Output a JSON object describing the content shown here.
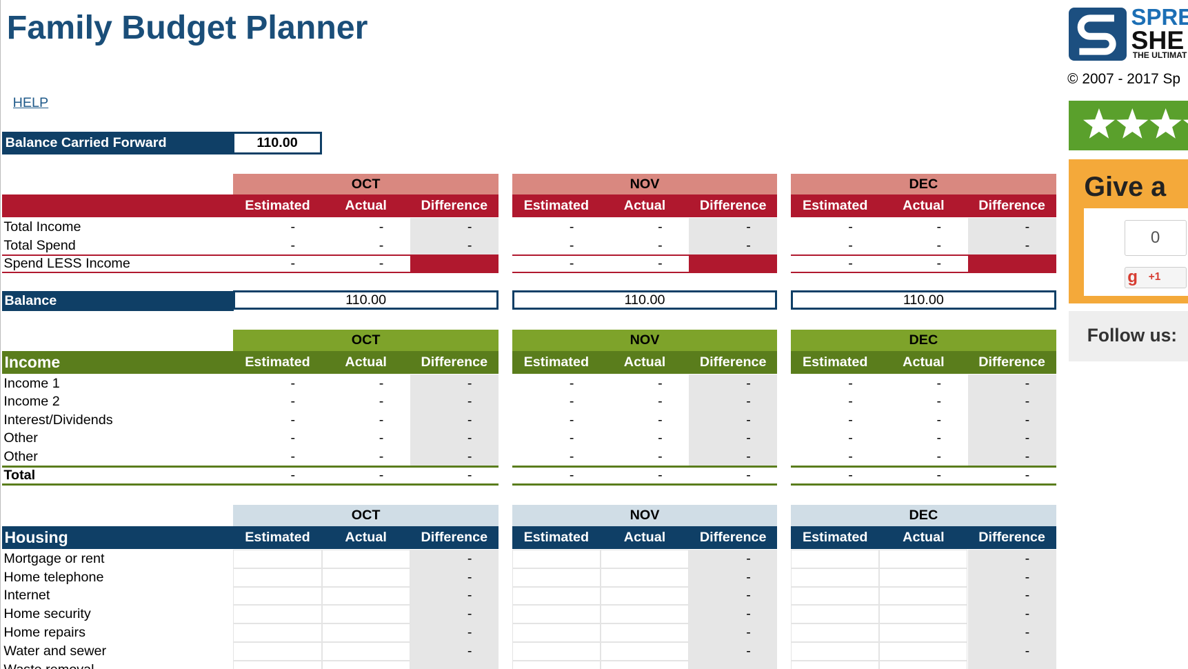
{
  "header": {
    "title": "Family Budget Planner",
    "help": "HELP"
  },
  "balance_forward": {
    "label": "Balance Carried Forward",
    "value": "110.00"
  },
  "summary": {
    "months": [
      "OCT",
      "NOV",
      "DEC"
    ],
    "columns": [
      "Estimated",
      "Actual",
      "Difference"
    ],
    "rows": [
      {
        "label": "Total Income",
        "cells": [
          "-",
          "-",
          "-",
          "-",
          "-",
          "-",
          "-",
          "-",
          "-"
        ]
      },
      {
        "label": "Total Spend",
        "cells": [
          "-",
          "-",
          "-",
          "-",
          "-",
          "-",
          "-",
          "-",
          "-"
        ]
      },
      {
        "label": "Spend LESS Income",
        "cells": [
          "-",
          "-",
          null,
          "-",
          "-",
          null,
          "-",
          "-",
          null
        ]
      }
    ]
  },
  "balance": {
    "label": "Balance",
    "values": [
      "110.00",
      "110.00",
      "110.00"
    ]
  },
  "income": {
    "title": "Income",
    "months": [
      "OCT",
      "NOV",
      "DEC"
    ],
    "columns": [
      "Estimated",
      "Actual",
      "Difference"
    ],
    "rows": [
      {
        "label": "Income 1",
        "cells": [
          "-",
          "-",
          "-",
          "-",
          "-",
          "-",
          "-",
          "-",
          "-"
        ]
      },
      {
        "label": "Income 2",
        "cells": [
          "-",
          "-",
          "-",
          "-",
          "-",
          "-",
          "-",
          "-",
          "-"
        ]
      },
      {
        "label": "Interest/Dividends",
        "cells": [
          "-",
          "-",
          "-",
          "-",
          "-",
          "-",
          "-",
          "-",
          "-"
        ]
      },
      {
        "label": "Other",
        "cells": [
          "-",
          "-",
          "-",
          "-",
          "-",
          "-",
          "-",
          "-",
          "-"
        ]
      },
      {
        "label": "Other",
        "cells": [
          "-",
          "-",
          "-",
          "-",
          "-",
          "-",
          "-",
          "-",
          "-"
        ]
      }
    ],
    "total": {
      "label": "Total",
      "cells": [
        "-",
        "-",
        "-",
        "-",
        "-",
        "-",
        "-",
        "-",
        "-"
      ]
    }
  },
  "housing": {
    "title": "Housing",
    "months": [
      "OCT",
      "NOV",
      "DEC"
    ],
    "columns": [
      "Estimated",
      "Actual",
      "Difference"
    ],
    "rows": [
      {
        "label": "Mortgage or rent",
        "cells": [
          null,
          null,
          "-",
          null,
          null,
          "-",
          null,
          null,
          "-"
        ]
      },
      {
        "label": "Home telephone",
        "cells": [
          null,
          null,
          "-",
          null,
          null,
          "-",
          null,
          null,
          "-"
        ]
      },
      {
        "label": "Internet",
        "cells": [
          null,
          null,
          "-",
          null,
          null,
          "-",
          null,
          null,
          "-"
        ]
      },
      {
        "label": "Home security",
        "cells": [
          null,
          null,
          "-",
          null,
          null,
          "-",
          null,
          null,
          "-"
        ]
      },
      {
        "label": "Home repairs",
        "cells": [
          null,
          null,
          "-",
          null,
          null,
          "-",
          null,
          null,
          "-"
        ]
      },
      {
        "label": "Water and sewer",
        "cells": [
          null,
          null,
          "-",
          null,
          null,
          "-",
          null,
          null,
          "-"
        ]
      },
      {
        "label": "Waste removal",
        "cells": [
          null,
          null,
          "-",
          null,
          null,
          "-",
          null,
          null,
          "-"
        ]
      }
    ]
  },
  "sidebar": {
    "logo_top": "SPRE",
    "logo_bottom": "SHE",
    "logo_tagline": "THE ULTIMAT",
    "copyright": "© 2007 - 2017 Sp",
    "give": "Give a",
    "count": "0",
    "gplus_icon": "g",
    "plus_one": "+1",
    "follow": "Follow us:"
  }
}
